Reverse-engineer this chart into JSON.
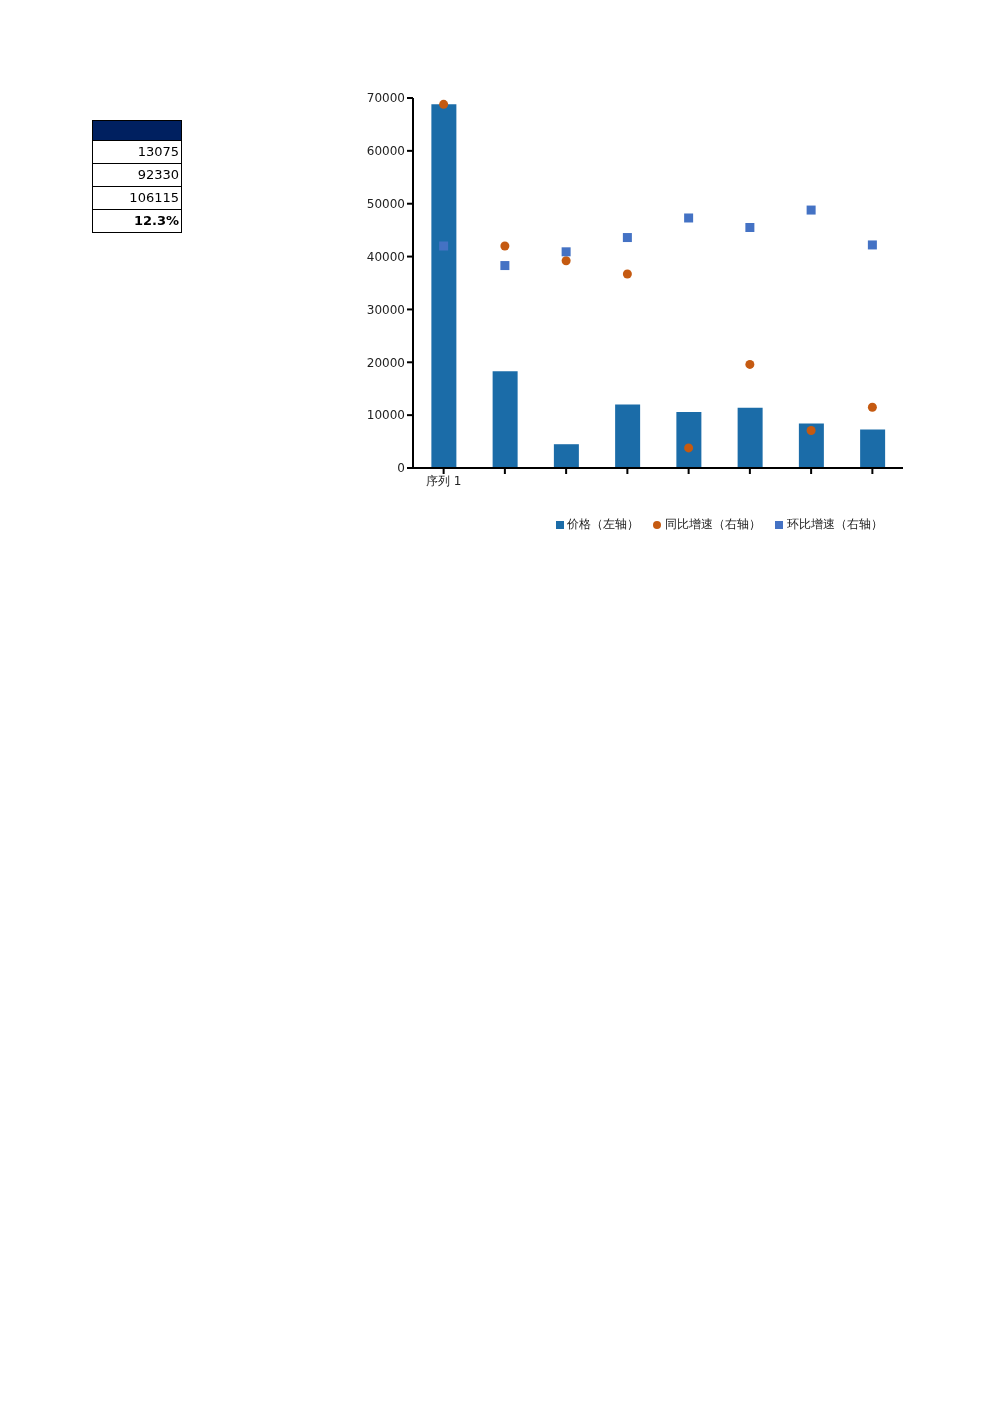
{
  "chart_data": [
    {
      "type": "other",
      "annotations": [
        "13075",
        "92330",
        "106115",
        "12.3%"
      ]
    },
    {
      "type": "bar",
      "categories": [
        "序列  1",
        null,
        null,
        null,
        null,
        null,
        null,
        null
      ],
      "series": [
        {
          "name": "价格（左轴）",
          "type": "bar",
          "color": "#1b6ca8",
          "values": [
            68800,
            18300,
            4500,
            12000,
            10600,
            11400,
            8400,
            7300
          ]
        },
        {
          "name": "同比增速（右轴）",
          "type": "scatter",
          "marker": "circle",
          "color": "#c55a11",
          "values": [
            68800,
            42000,
            39200,
            36700,
            3800,
            19600,
            7100,
            11500
          ]
        },
        {
          "name": "环比增速（右轴）",
          "type": "scatter",
          "marker": "square",
          "color": "#4472c4",
          "values": [
            42000,
            38300,
            40900,
            43600,
            47300,
            45500,
            48800,
            42200
          ]
        }
      ],
      "ylim": [
        0,
        70000
      ],
      "yticks": [
        0,
        10000,
        20000,
        30000,
        40000,
        50000,
        60000,
        70000
      ],
      "grid": false,
      "legend": "bottom"
    }
  ]
}
